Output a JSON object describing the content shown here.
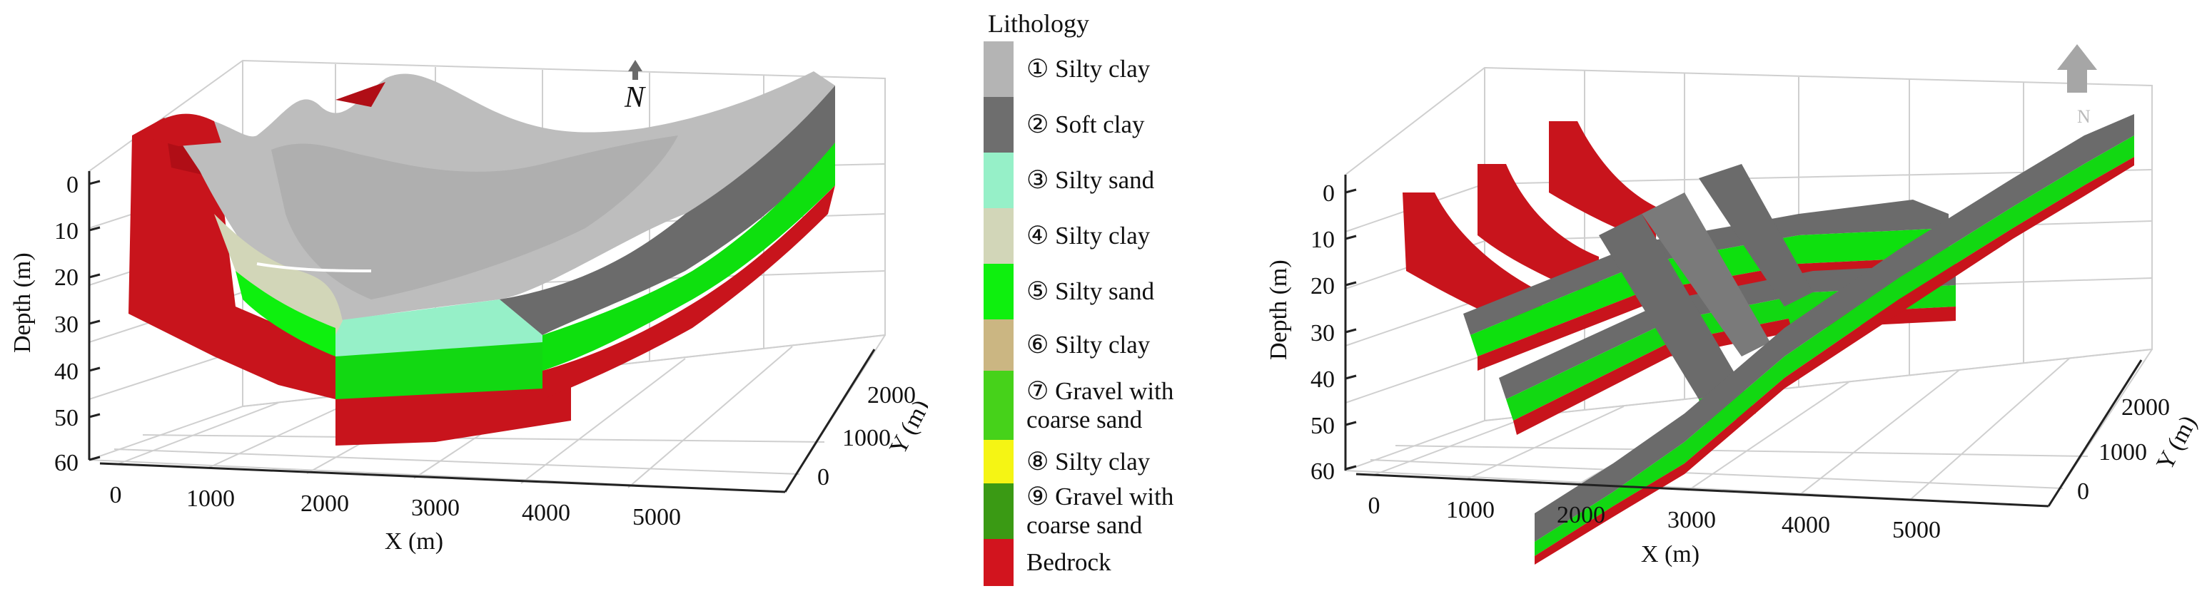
{
  "left_plot": {
    "north_label": "N",
    "depth_axis": {
      "label": "Depth (m)",
      "ticks": [
        "0",
        "10",
        "20",
        "30",
        "40",
        "50",
        "60"
      ]
    },
    "x_axis": {
      "label": "X (m)",
      "ticks": [
        "0",
        "1000",
        "2000",
        "3000",
        "4000",
        "5000"
      ]
    },
    "y_axis": {
      "label": "Y (m)",
      "ticks": [
        "0",
        "1000",
        "2000"
      ]
    }
  },
  "right_plot": {
    "north_label": "N",
    "depth_axis": {
      "label": "Depth (m)",
      "ticks": [
        "0",
        "10",
        "20",
        "30",
        "40",
        "50",
        "60"
      ]
    },
    "x_axis": {
      "label": "X (m)",
      "ticks": [
        "0",
        "1000",
        "2000",
        "3000",
        "4000",
        "5000"
      ]
    },
    "y_axis": {
      "label": "Y (m)",
      "ticks": [
        "0",
        "1000",
        "2000"
      ]
    }
  },
  "legend": {
    "title": "Lithology",
    "items": [
      {
        "label": "① Silty clay",
        "color": "#b4b4b4"
      },
      {
        "label": "② Soft clay",
        "color": "#6e6e6e"
      },
      {
        "label": "③ Silty sand",
        "color": "#96f0c8"
      },
      {
        "label": "④ Silty clay",
        "color": "#d2d6b8"
      },
      {
        "label": "⑤ Silty sand",
        "color": "#0ef00e"
      },
      {
        "label": "⑥ Silty clay",
        "color": "#cbb682"
      },
      {
        "label": "⑦ Gravel with\ncoarse sand",
        "color": "#46d21a"
      },
      {
        "label": "⑧ Silty clay",
        "color": "#f5f514"
      },
      {
        "label": "⑨ Gravel with\ncoarse sand",
        "color": "#3a9a14"
      },
      {
        "label": "Bedrock",
        "color": "#d2141e"
      }
    ]
  }
}
